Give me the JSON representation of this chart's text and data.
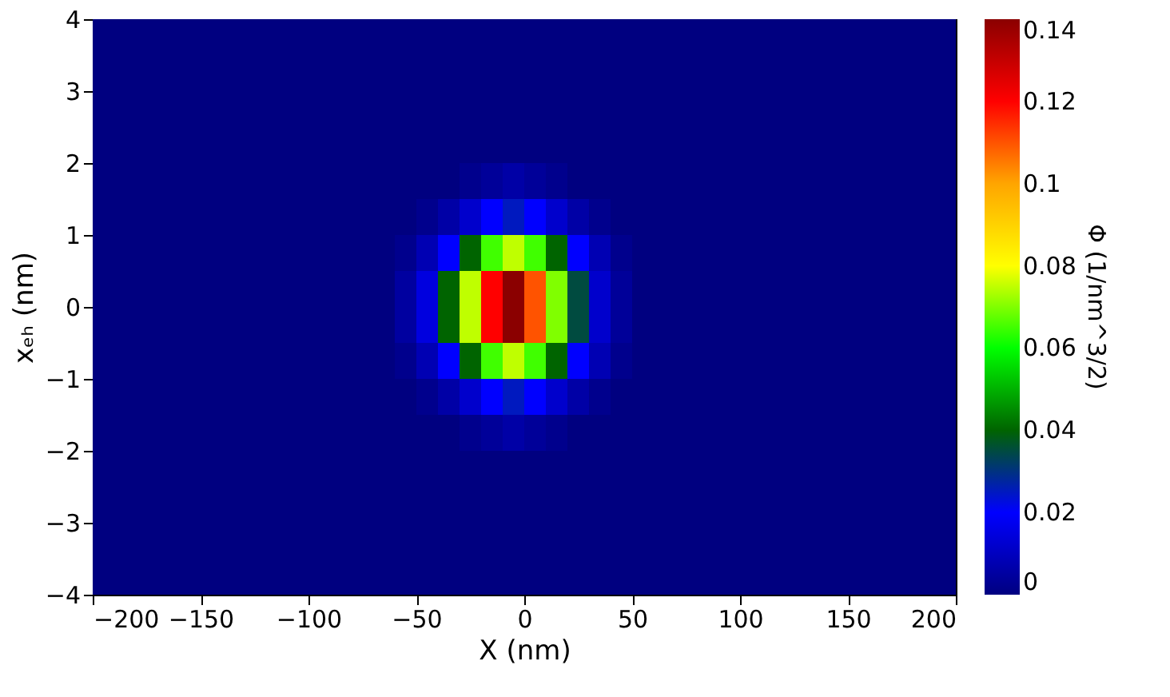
{
  "chart_data": {
    "type": "heatmap",
    "xlabel": "X (nm)",
    "ylabel": "xₑₕ (nm)",
    "clabel": "Φ (1/nm^3/2)",
    "x": [
      -195,
      -185,
      -175,
      -165,
      -155,
      -145,
      -135,
      -125,
      -115,
      -105,
      -95,
      -85,
      -75,
      -65,
      -55,
      -45,
      -35,
      -25,
      -15,
      -5,
      5,
      15,
      25,
      35,
      45,
      55,
      65,
      75,
      85,
      95,
      105,
      115,
      125,
      135,
      145,
      155,
      165,
      175,
      185,
      195
    ],
    "y": [
      3.75,
      3.25,
      2.75,
      2.25,
      1.75,
      1.25,
      0.75,
      0.25,
      -0.25,
      -0.75,
      -1.25,
      -1.75,
      -2.25,
      -2.75,
      -3.25,
      -3.75
    ],
    "cells": [
      [
        0,
        0,
        0,
        0,
        0,
        0,
        0,
        0,
        0,
        0,
        0,
        0,
        0,
        0,
        0,
        0,
        0,
        0,
        0,
        0,
        0,
        0,
        0,
        0,
        0,
        0,
        0,
        0,
        0,
        0,
        0,
        0,
        0,
        0,
        0,
        0,
        0,
        0,
        0,
        0
      ],
      [
        0,
        0,
        0,
        0,
        0,
        0,
        0,
        0,
        0,
        0,
        0,
        0,
        0,
        0,
        0,
        0,
        0,
        0,
        0,
        0,
        0,
        0,
        0,
        0,
        0,
        0,
        0,
        0,
        0,
        0,
        0,
        0,
        0,
        0,
        0,
        0,
        0,
        0,
        0,
        0
      ],
      [
        0,
        0,
        0,
        0,
        0,
        0,
        0,
        0,
        0,
        0,
        0,
        0,
        0,
        0,
        0,
        0,
        0,
        0,
        0,
        0,
        0,
        0,
        0,
        0,
        0,
        0,
        0,
        0,
        0,
        0,
        0,
        0,
        0,
        0,
        0,
        0,
        0,
        0,
        0,
        0
      ],
      [
        0,
        0,
        0,
        0,
        0,
        0,
        0,
        0,
        0,
        0,
        0,
        0,
        0,
        0,
        0,
        0,
        0,
        0,
        0,
        0,
        0,
        0,
        0,
        0,
        0,
        0,
        0,
        0,
        0,
        0,
        0,
        0,
        0,
        0,
        0,
        0,
        0,
        0,
        0,
        0
      ],
      [
        0,
        0,
        0,
        0,
        0,
        0,
        0,
        0,
        0,
        0,
        0,
        0,
        0,
        0,
        0,
        0,
        0,
        0.002,
        0.004,
        0.006,
        0.004,
        0.002,
        0,
        0,
        0,
        0,
        0,
        0,
        0,
        0,
        0,
        0,
        0,
        0,
        0,
        0,
        0,
        0,
        0,
        0
      ],
      [
        0,
        0,
        0,
        0,
        0,
        0,
        0,
        0,
        0,
        0,
        0,
        0,
        0,
        0,
        0,
        0.002,
        0.006,
        0.012,
        0.02,
        0.025,
        0.02,
        0.012,
        0.006,
        0.002,
        0,
        0,
        0,
        0,
        0,
        0,
        0,
        0,
        0,
        0,
        0,
        0,
        0,
        0,
        0,
        0
      ],
      [
        0,
        0,
        0,
        0,
        0,
        0,
        0,
        0,
        0,
        0,
        0,
        0,
        0,
        0,
        0.002,
        0.008,
        0.02,
        0.04,
        0.065,
        0.075,
        0.065,
        0.04,
        0.02,
        0.008,
        0.002,
        0,
        0,
        0,
        0,
        0,
        0,
        0,
        0,
        0,
        0,
        0,
        0,
        0,
        0,
        0
      ],
      [
        0,
        0,
        0,
        0,
        0,
        0,
        0,
        0,
        0,
        0,
        0,
        0,
        0,
        0,
        0.005,
        0.015,
        0.04,
        0.075,
        0.12,
        0.14,
        0.11,
        0.07,
        0.035,
        0.012,
        0.004,
        0,
        0,
        0,
        0,
        0,
        0,
        0,
        0,
        0,
        0,
        0,
        0,
        0,
        0,
        0
      ],
      [
        0,
        0,
        0,
        0,
        0,
        0,
        0,
        0,
        0,
        0,
        0,
        0,
        0,
        0,
        0.005,
        0.015,
        0.04,
        0.075,
        0.12,
        0.14,
        0.11,
        0.07,
        0.035,
        0.012,
        0.004,
        0,
        0,
        0,
        0,
        0,
        0,
        0,
        0,
        0,
        0,
        0,
        0,
        0,
        0,
        0
      ],
      [
        0,
        0,
        0,
        0,
        0,
        0,
        0,
        0,
        0,
        0,
        0,
        0,
        0,
        0,
        0.002,
        0.008,
        0.02,
        0.04,
        0.065,
        0.075,
        0.065,
        0.04,
        0.02,
        0.008,
        0.002,
        0,
        0,
        0,
        0,
        0,
        0,
        0,
        0,
        0,
        0,
        0,
        0,
        0,
        0,
        0
      ],
      [
        0,
        0,
        0,
        0,
        0,
        0,
        0,
        0,
        0,
        0,
        0,
        0,
        0,
        0,
        0,
        0.002,
        0.006,
        0.012,
        0.02,
        0.025,
        0.02,
        0.012,
        0.006,
        0.002,
        0,
        0,
        0,
        0,
        0,
        0,
        0,
        0,
        0,
        0,
        0,
        0,
        0,
        0,
        0,
        0
      ],
      [
        0,
        0,
        0,
        0,
        0,
        0,
        0,
        0,
        0,
        0,
        0,
        0,
        0,
        0,
        0,
        0,
        0,
        0.002,
        0.004,
        0.006,
        0.004,
        0.002,
        0,
        0,
        0,
        0,
        0,
        0,
        0,
        0,
        0,
        0,
        0,
        0,
        0,
        0,
        0,
        0,
        0,
        0
      ],
      [
        0,
        0,
        0,
        0,
        0,
        0,
        0,
        0,
        0,
        0,
        0,
        0,
        0,
        0,
        0,
        0,
        0,
        0,
        0,
        0,
        0,
        0,
        0,
        0,
        0,
        0,
        0,
        0,
        0,
        0,
        0,
        0,
        0,
        0,
        0,
        0,
        0,
        0,
        0,
        0
      ],
      [
        0,
        0,
        0,
        0,
        0,
        0,
        0,
        0,
        0,
        0,
        0,
        0,
        0,
        0,
        0,
        0,
        0,
        0,
        0,
        0,
        0,
        0,
        0,
        0,
        0,
        0,
        0,
        0,
        0,
        0,
        0,
        0,
        0,
        0,
        0,
        0,
        0,
        0,
        0,
        0
      ],
      [
        0,
        0,
        0,
        0,
        0,
        0,
        0,
        0,
        0,
        0,
        0,
        0,
        0,
        0,
        0,
        0,
        0,
        0,
        0,
        0,
        0,
        0,
        0,
        0,
        0,
        0,
        0,
        0,
        0,
        0,
        0,
        0,
        0,
        0,
        0,
        0,
        0,
        0,
        0,
        0
      ],
      [
        0,
        0,
        0,
        0,
        0,
        0,
        0,
        0,
        0,
        0,
        0,
        0,
        0,
        0,
        0,
        0,
        0,
        0,
        0,
        0,
        0,
        0,
        0,
        0,
        0,
        0,
        0,
        0,
        0,
        0,
        0,
        0,
        0,
        0,
        0,
        0,
        0,
        0,
        0,
        0
      ]
    ],
    "colors": [
      "#000080",
      "#0000ff",
      "#006400",
      "#00ff00",
      "#ffff00",
      "#ffa500",
      "#ff0000",
      "#8b0000"
    ],
    "clim": [
      0,
      0.14
    ],
    "cticks": [
      0,
      0.02,
      0.04,
      0.06,
      0.08,
      0.1,
      0.12,
      0.14
    ],
    "xlim": [
      -200,
      200
    ],
    "xticks": [
      -200,
      -150,
      -100,
      -50,
      0,
      50,
      100,
      150,
      200
    ],
    "ylim": [
      -4,
      4
    ],
    "yticks": [
      -4,
      -3,
      -2,
      -1,
      0,
      1,
      2,
      3,
      4
    ],
    "grid": false
  }
}
